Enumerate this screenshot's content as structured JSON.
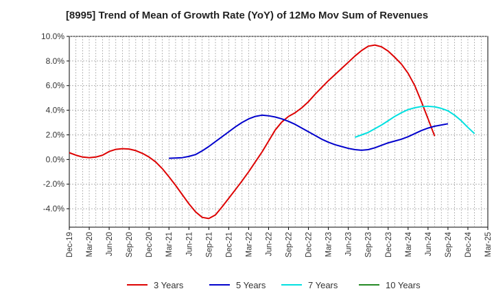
{
  "chart_data": {
    "type": "line",
    "title": "[8995]  Trend of Mean of Growth Rate (YoY) of 12Mo Mov Sum of Revenues",
    "xlabel": "",
    "ylabel": "",
    "ylim": [
      -5.5,
      10.0
    ],
    "y_ticks": [
      10.0,
      8.0,
      6.0,
      4.0,
      2.0,
      0.0,
      -2.0,
      -4.0
    ],
    "y_tick_labels": [
      "10.0%",
      "8.0%",
      "6.0%",
      "4.0%",
      "2.0%",
      "0.0%",
      "-2.0%",
      "-4.0%"
    ],
    "x_start": "Dec-19",
    "x_tick_labels": [
      "Dec-19",
      "Mar-20",
      "Jun-20",
      "Sep-20",
      "Dec-20",
      "Mar-21",
      "Jun-21",
      "Sep-21",
      "Dec-21",
      "Mar-22",
      "Jun-22",
      "Sep-22",
      "Dec-22",
      "Mar-23",
      "Jun-23",
      "Sep-23",
      "Dec-23",
      "Mar-24",
      "Jun-24",
      "Sep-24",
      "Dec-24",
      "Mar-25"
    ],
    "grid": true,
    "legend_position": "bottom",
    "series": [
      {
        "name": "3 Years",
        "color": "#dd0000",
        "start_index": 0,
        "values": [
          0.55,
          0.35,
          0.2,
          0.15,
          0.2,
          0.35,
          0.65,
          0.82,
          0.88,
          0.85,
          0.72,
          0.5,
          0.2,
          -0.2,
          -0.75,
          -1.4,
          -2.1,
          -2.85,
          -3.6,
          -4.25,
          -4.7,
          -4.8,
          -4.5,
          -3.85,
          -3.15,
          -2.45,
          -1.75,
          -1.0,
          -0.2,
          0.6,
          1.5,
          2.4,
          3.05,
          3.5,
          3.8,
          4.2,
          4.7,
          5.3,
          5.85,
          6.4,
          6.9,
          7.4,
          7.9,
          8.4,
          8.85,
          9.2,
          9.3,
          9.15,
          8.8,
          8.3,
          7.75,
          7.0,
          6.0,
          4.7,
          3.3,
          1.9
        ]
      },
      {
        "name": "5 Years",
        "color": "#0000cc",
        "start_index": 15,
        "values": [
          0.1,
          0.12,
          0.15,
          0.25,
          0.4,
          0.7,
          1.05,
          1.45,
          1.85,
          2.25,
          2.65,
          3.0,
          3.3,
          3.5,
          3.6,
          3.55,
          3.45,
          3.3,
          3.1,
          2.85,
          2.55,
          2.25,
          1.95,
          1.65,
          1.4,
          1.2,
          1.05,
          0.9,
          0.8,
          0.75,
          0.8,
          0.95,
          1.15,
          1.35,
          1.5,
          1.65,
          1.85,
          2.1,
          2.35,
          2.55,
          2.7,
          2.8,
          2.9
        ]
      },
      {
        "name": "7 Years",
        "color": "#00e0e0",
        "start_index": 43,
        "values": [
          1.8,
          2.0,
          2.2,
          2.5,
          2.8,
          3.15,
          3.5,
          3.8,
          4.05,
          4.2,
          4.3,
          4.32,
          4.28,
          4.15,
          3.95,
          3.6,
          3.15,
          2.6,
          2.1
        ]
      },
      {
        "name": "10 Years",
        "color": "#228822",
        "start_index": 0,
        "values": []
      }
    ]
  }
}
